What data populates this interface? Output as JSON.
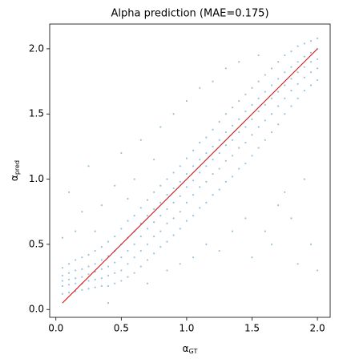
{
  "chart_data": {
    "type": "scatter",
    "title": "Alpha prediction (MAE=0.175)",
    "xlabel": "α",
    "xlabel_sub": "GT",
    "ylabel": "α",
    "ylabel_sub": "pred",
    "xlim": [
      -0.0475,
      2.0975
    ],
    "ylim": [
      -0.06,
      2.19
    ],
    "xticks": [
      {
        "value": 0,
        "label": "0.0"
      },
      0.5,
      {
        "value": 1,
        "label": "1.0"
      },
      1.5,
      {
        "value": 2,
        "label": "2.0"
      }
    ],
    "yticks": [
      {
        "value": 0,
        "label": "0.0"
      },
      0.5,
      {
        "value": 1,
        "label": "1.0"
      },
      1.5,
      {
        "value": 2,
        "label": "2.0"
      }
    ],
    "series": [
      {
        "color": "#1f77b4",
        "x": [
          0.05,
          0.05,
          0.05,
          0.05,
          0.05,
          0.05,
          0.1,
          0.1,
          0.1,
          0.1,
          0.1,
          0.1,
          0.15,
          0.15,
          0.15,
          0.15,
          0.15,
          0.15,
          0.2,
          0.2,
          0.2,
          0.2,
          0.2,
          0.2,
          0.25,
          0.25,
          0.25,
          0.25,
          0.25,
          0.25,
          0.3,
          0.3,
          0.3,
          0.3,
          0.3,
          0.3,
          0.35,
          0.35,
          0.35,
          0.35,
          0.35,
          0.35,
          0.4,
          0.4,
          0.4,
          0.4,
          0.4,
          0.4,
          0.45,
          0.45,
          0.45,
          0.45,
          0.45,
          0.45,
          0.5,
          0.5,
          0.5,
          0.5,
          0.5,
          0.5,
          0.55,
          0.55,
          0.55,
          0.55,
          0.55,
          0.55,
          0.6,
          0.6,
          0.6,
          0.6,
          0.6,
          0.6,
          0.65,
          0.65,
          0.65,
          0.65,
          0.65,
          0.65,
          0.7,
          0.7,
          0.7,
          0.7,
          0.7,
          0.7,
          0.75,
          0.75,
          0.75,
          0.75,
          0.75,
          0.75,
          0.8,
          0.8,
          0.8,
          0.8,
          0.8,
          0.8,
          0.85,
          0.85,
          0.85,
          0.85,
          0.85,
          0.85,
          0.9,
          0.9,
          0.9,
          0.9,
          0.9,
          0.9,
          0.95,
          0.95,
          0.95,
          0.95,
          0.95,
          0.95,
          1.0,
          1.0,
          1.0,
          1.0,
          1.0,
          1.0,
          1.05,
          1.05,
          1.05,
          1.05,
          1.05,
          1.05,
          1.1,
          1.1,
          1.1,
          1.1,
          1.1,
          1.1,
          1.15,
          1.15,
          1.15,
          1.15,
          1.15,
          1.15,
          1.2,
          1.2,
          1.2,
          1.2,
          1.2,
          1.2,
          1.25,
          1.25,
          1.25,
          1.25,
          1.25,
          1.25,
          1.3,
          1.3,
          1.3,
          1.3,
          1.3,
          1.3,
          1.35,
          1.35,
          1.35,
          1.35,
          1.35,
          1.35,
          1.4,
          1.4,
          1.4,
          1.4,
          1.4,
          1.4,
          1.45,
          1.45,
          1.45,
          1.45,
          1.45,
          1.45,
          1.5,
          1.5,
          1.5,
          1.5,
          1.5,
          1.5,
          1.55,
          1.55,
          1.55,
          1.55,
          1.55,
          1.55,
          1.6,
          1.6,
          1.6,
          1.6,
          1.6,
          1.6,
          1.65,
          1.65,
          1.65,
          1.65,
          1.65,
          1.65,
          1.7,
          1.7,
          1.7,
          1.7,
          1.7,
          1.7,
          1.75,
          1.75,
          1.75,
          1.75,
          1.75,
          1.75,
          1.8,
          1.8,
          1.8,
          1.8,
          1.8,
          1.8,
          1.85,
          1.85,
          1.85,
          1.85,
          1.85,
          1.85,
          1.9,
          1.9,
          1.9,
          1.9,
          1.9,
          1.9,
          1.95,
          1.95,
          1.95,
          1.95,
          1.95,
          1.95,
          2.0,
          2.0,
          2.0,
          2.0,
          2.0,
          2.0
        ],
        "y": [
          0.12,
          0.18,
          0.22,
          0.26,
          0.32,
          0.55,
          0.13,
          0.19,
          0.23,
          0.28,
          0.35,
          0.9,
          0.14,
          0.2,
          0.24,
          0.3,
          0.38,
          0.6,
          0.15,
          0.2,
          0.25,
          0.31,
          0.4,
          0.75,
          0.16,
          0.22,
          0.27,
          0.33,
          0.42,
          1.1,
          0.17,
          0.23,
          0.29,
          0.35,
          0.45,
          0.6,
          0.18,
          0.24,
          0.31,
          0.38,
          0.48,
          0.8,
          0.18,
          0.26,
          0.33,
          0.41,
          0.52,
          0.05,
          0.2,
          0.28,
          0.36,
          0.45,
          0.56,
          0.95,
          0.22,
          0.3,
          0.4,
          0.5,
          0.62,
          1.2,
          0.25,
          0.35,
          0.45,
          0.55,
          0.68,
          0.85,
          0.28,
          0.4,
          0.5,
          0.6,
          0.72,
          1.0,
          0.33,
          0.45,
          0.56,
          0.66,
          0.78,
          1.3,
          0.38,
          0.5,
          0.62,
          0.72,
          0.84,
          0.2,
          0.43,
          0.56,
          0.67,
          0.77,
          0.9,
          1.15,
          0.48,
          0.6,
          0.72,
          0.82,
          0.95,
          1.4,
          0.52,
          0.66,
          0.77,
          0.88,
          1.0,
          0.3,
          0.57,
          0.7,
          0.82,
          0.93,
          1.05,
          1.5,
          0.62,
          0.75,
          0.87,
          0.98,
          1.1,
          0.35,
          0.68,
          0.82,
          0.94,
          1.04,
          1.16,
          1.6,
          0.72,
          0.88,
          0.99,
          1.1,
          1.22,
          0.4,
          0.78,
          0.94,
          1.05,
          1.15,
          1.28,
          1.7,
          0.82,
          0.98,
          1.1,
          1.2,
          1.32,
          0.5,
          0.88,
          1.04,
          1.15,
          1.25,
          1.38,
          1.75,
          0.92,
          1.08,
          1.2,
          1.3,
          1.44,
          0.45,
          0.98,
          1.14,
          1.26,
          1.36,
          1.5,
          1.85,
          1.02,
          1.18,
          1.3,
          1.41,
          1.55,
          0.6,
          1.08,
          1.24,
          1.36,
          1.46,
          1.6,
          1.9,
          1.12,
          1.28,
          1.4,
          1.52,
          1.65,
          0.7,
          1.18,
          1.34,
          1.46,
          1.57,
          1.7,
          0.4,
          1.24,
          1.4,
          1.52,
          1.62,
          1.75,
          1.95,
          1.3,
          1.45,
          1.57,
          1.67,
          1.8,
          0.6,
          1.36,
          1.5,
          1.62,
          1.72,
          1.85,
          0.5,
          1.42,
          1.56,
          1.67,
          1.77,
          1.9,
          0.8,
          1.5,
          1.62,
          1.72,
          1.82,
          1.95,
          0.9,
          1.56,
          1.68,
          1.77,
          1.86,
          1.98,
          0.7,
          1.62,
          1.73,
          1.82,
          1.9,
          2.02,
          0.35,
          1.68,
          1.78,
          1.86,
          1.94,
          2.04,
          1.0,
          1.72,
          1.82,
          1.9,
          1.97,
          2.06,
          0.5,
          1.76,
          1.85,
          1.92,
          2.0,
          2.08,
          0.3
        ]
      }
    ],
    "identity_line": {
      "color": "#d00000",
      "x": [
        0.05,
        2.0
      ],
      "y": [
        0.05,
        2.0
      ]
    }
  }
}
